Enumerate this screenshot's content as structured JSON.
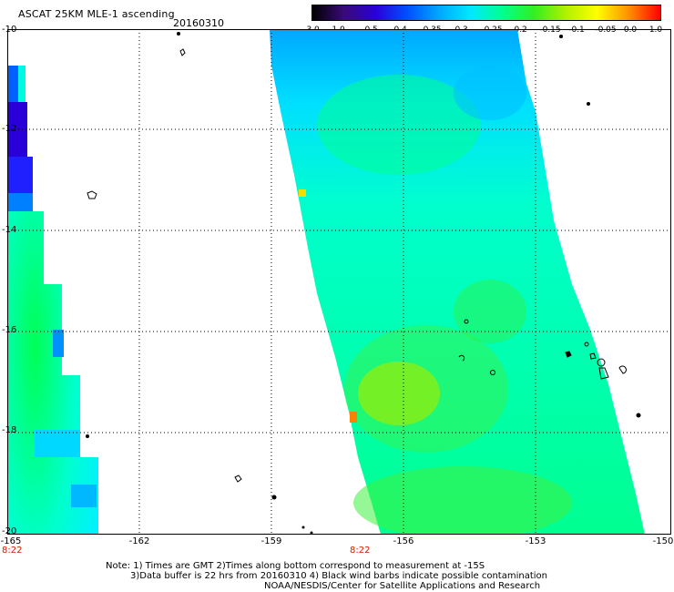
{
  "header": {
    "title": "ASCAT 25KM MLE-1 ascending",
    "date": "20160310"
  },
  "colorbar": {
    "labels": [
      "-3.0",
      "-1.0",
      "-0.5",
      "-0.4",
      "-0.35",
      "-0.3",
      "-0.25",
      "-0.2",
      "-0.15",
      "-0.1",
      "-0.05",
      "0.0",
      "1.0"
    ],
    "colors": [
      "#000000",
      "#3a0a78",
      "#2a00d8",
      "#0050ff",
      "#00a8ff",
      "#00e8ff",
      "#00ff90",
      "#30f020",
      "#b0f000",
      "#ffff00",
      "#ff9000",
      "#ff0000"
    ]
  },
  "map": {
    "lat_labels": [
      "-10",
      "-12",
      "-14",
      "-16",
      "-18",
      "-20"
    ],
    "lon_labels": [
      "-165",
      "-162",
      "-159",
      "-156",
      "-153",
      "-150"
    ],
    "time_labels": [
      "8:22",
      "8:22"
    ]
  },
  "footer": {
    "note1": "Note: 1) Times are GMT 2)Times along bottom correspond to measurement at -15S",
    "note2": "3)Data buffer is 22 hrs from 20160310 4) Black wind barbs indicate possible contamination",
    "note3": "NOAA/NESDIS/Center for Satellite Applications and Research"
  }
}
